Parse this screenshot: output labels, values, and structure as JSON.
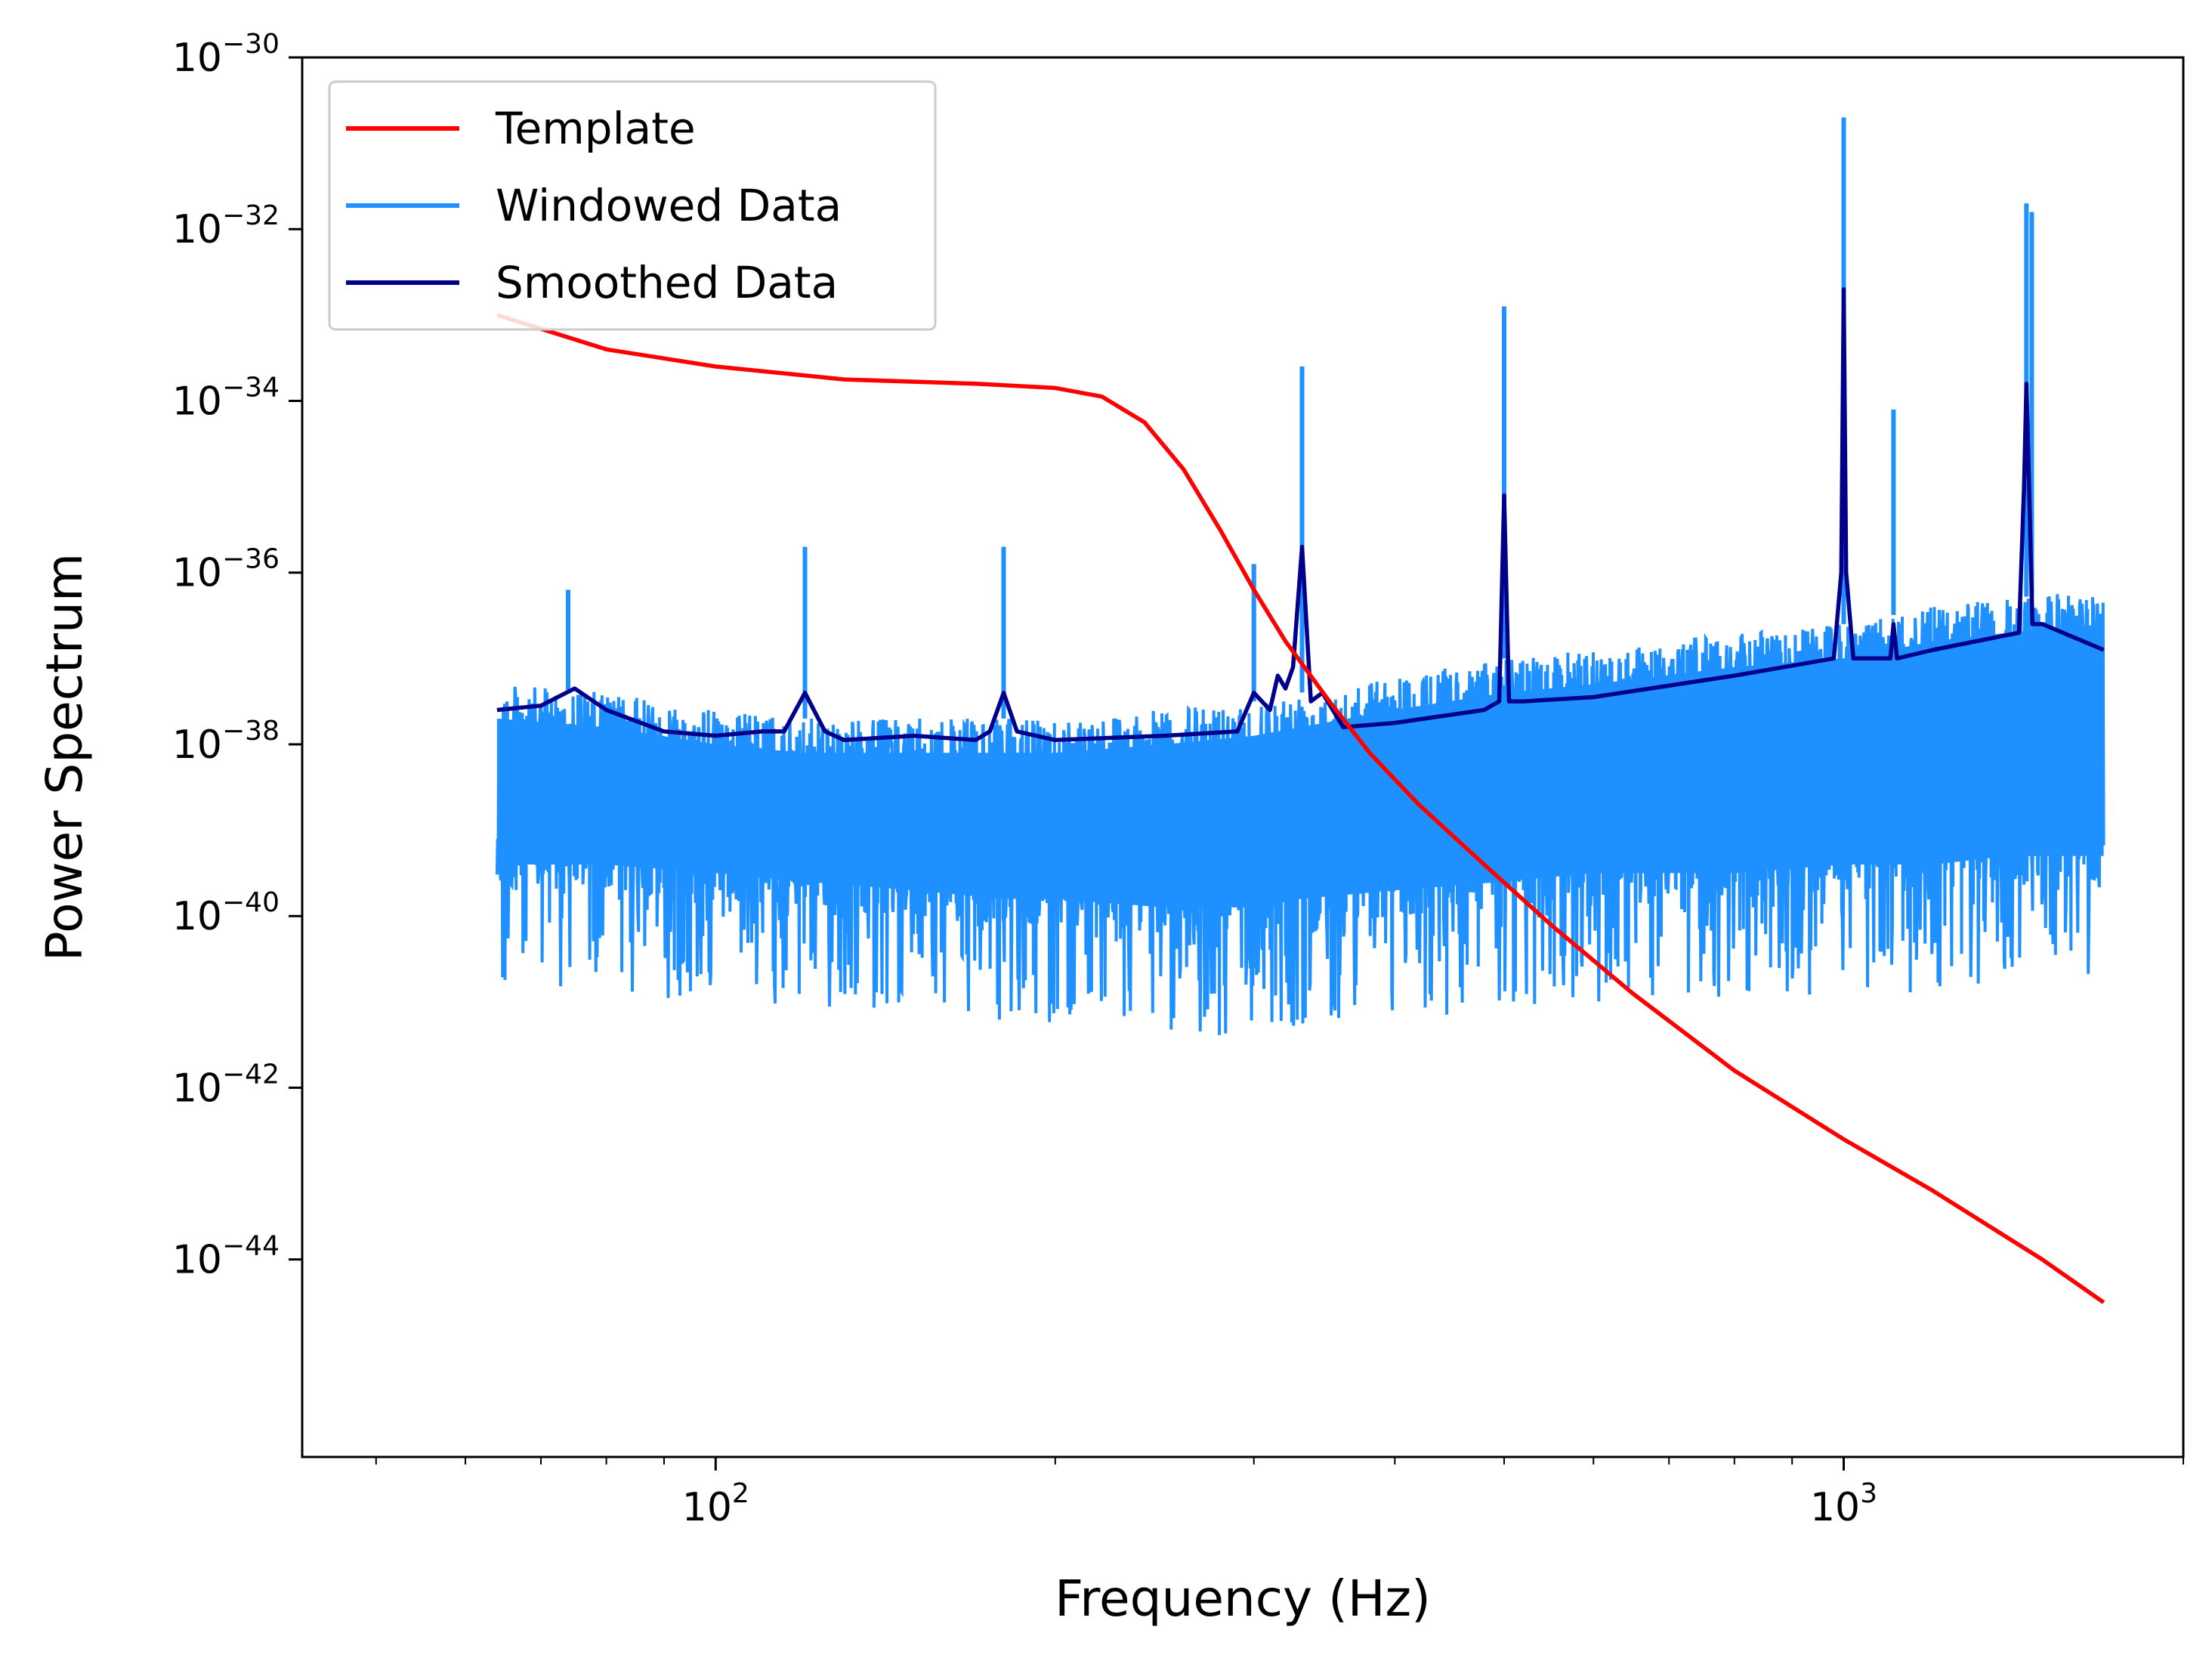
{
  "chart_data": {
    "type": "line",
    "title": "",
    "xlabel": "Frequency (Hz)",
    "ylabel": "Power Spectrum",
    "xscale": "log",
    "yscale": "log",
    "xlim": [
      43,
      2000
    ],
    "ylim_exponent": [
      -46.3,
      -30
    ],
    "x_major_ticks": [
      {
        "value": 100,
        "label_base": "10",
        "label_exp": "2"
      },
      {
        "value": 1000,
        "label_base": "10",
        "label_exp": "3"
      }
    ],
    "y_major_ticks": [
      {
        "exp": -30,
        "label_base": "10",
        "label_exp": "−30"
      },
      {
        "exp": -32,
        "label_base": "10",
        "label_exp": "−32"
      },
      {
        "exp": -34,
        "label_base": "10",
        "label_exp": "−34"
      },
      {
        "exp": -36,
        "label_base": "10",
        "label_exp": "−36"
      },
      {
        "exp": -38,
        "label_base": "10",
        "label_exp": "−38"
      },
      {
        "exp": -40,
        "label_base": "10",
        "label_exp": "−40"
      },
      {
        "exp": -42,
        "label_base": "10",
        "label_exp": "−42"
      },
      {
        "exp": -44,
        "label_base": "10",
        "label_exp": "−44"
      }
    ],
    "legend": {
      "placement": "top-left"
    },
    "series": [
      {
        "name": "Template",
        "color": "#ff0000",
        "x": [
          64,
          80,
          100,
          130,
          170,
          200,
          220,
          240,
          260,
          280,
          300,
          320,
          350,
          380,
          420,
          480,
          550,
          650,
          800,
          1000,
          1200,
          1500,
          1700
        ],
        "y_log10": [
          -33.0,
          -33.4,
          -33.6,
          -33.75,
          -33.8,
          -33.85,
          -33.95,
          -34.25,
          -34.8,
          -35.5,
          -36.2,
          -36.8,
          -37.5,
          -38.1,
          -38.7,
          -39.4,
          -40.1,
          -40.9,
          -41.8,
          -42.6,
          -43.2,
          -44.0,
          -44.5
        ]
      },
      {
        "name": "Windowed Data",
        "color": "#1e90ff",
        "x": [
          64,
          80,
          100,
          120,
          150,
          180,
          200,
          250,
          300,
          330,
          400,
          500,
          600,
          800,
          1000,
          1100,
          1200,
          1400,
          1700
        ],
        "y_upper_log10": [
          -37.3,
          -37.4,
          -37.6,
          -37.7,
          -37.7,
          -37.7,
          -37.7,
          -37.6,
          -37.5,
          -37.4,
          -37.2,
          -37.0,
          -36.9,
          -36.7,
          -36.6,
          -36.5,
          -36.4,
          -36.3,
          -36.2
        ],
        "y_lower_log10": [
          -39.7,
          -39.7,
          -39.8,
          -39.9,
          -40.0,
          -40.1,
          -40.1,
          -40.2,
          -40.2,
          -40.1,
          -40.0,
          -39.9,
          -39.8,
          -39.8,
          -39.7,
          -39.7,
          -39.7,
          -39.6,
          -39.6
        ],
        "peaks": [
          {
            "x": 74,
            "y_log10": -36.2
          },
          {
            "x": 120,
            "y_log10": -35.7
          },
          {
            "x": 180,
            "y_log10": -35.7
          },
          {
            "x": 300,
            "y_log10": -35.9
          },
          {
            "x": 331,
            "y_log10": -33.6
          },
          {
            "x": 500,
            "y_log10": -32.9
          },
          {
            "x": 1000,
            "y_log10": -30.7
          },
          {
            "x": 1107,
            "y_log10": -34.1
          },
          {
            "x": 1452,
            "y_log10": -31.7
          },
          {
            "x": 1468,
            "y_log10": -31.8
          }
        ]
      },
      {
        "name": "Smoothed Data",
        "color": "#00008b",
        "x": [
          64,
          70,
          75,
          80,
          90,
          100,
          110,
          115,
          120,
          125,
          130,
          150,
          170,
          175,
          180,
          185,
          200,
          250,
          290,
          300,
          310,
          315,
          320,
          325,
          331,
          337,
          345,
          360,
          400,
          480,
          495,
          500,
          505,
          520,
          600,
          800,
          980,
          995,
          1000,
          1005,
          1020,
          1100,
          1107,
          1115,
          1200,
          1430,
          1445,
          1452,
          1460,
          1470,
          1500,
          1700
        ],
        "y_log10": [
          -37.6,
          -37.55,
          -37.35,
          -37.6,
          -37.85,
          -37.9,
          -37.85,
          -37.85,
          -37.4,
          -37.85,
          -37.95,
          -37.9,
          -37.95,
          -37.85,
          -37.4,
          -37.85,
          -37.95,
          -37.9,
          -37.85,
          -37.4,
          -37.6,
          -37.2,
          -37.35,
          -37.1,
          -35.7,
          -37.5,
          -37.4,
          -37.8,
          -37.75,
          -37.6,
          -37.5,
          -35.1,
          -37.5,
          -37.5,
          -37.45,
          -37.2,
          -37.0,
          -36.0,
          -32.7,
          -36.0,
          -37.0,
          -37.0,
          -36.6,
          -37.0,
          -36.9,
          -36.7,
          -35.0,
          -33.8,
          -35.0,
          -36.6,
          -36.6,
          -36.9
        ]
      }
    ]
  }
}
